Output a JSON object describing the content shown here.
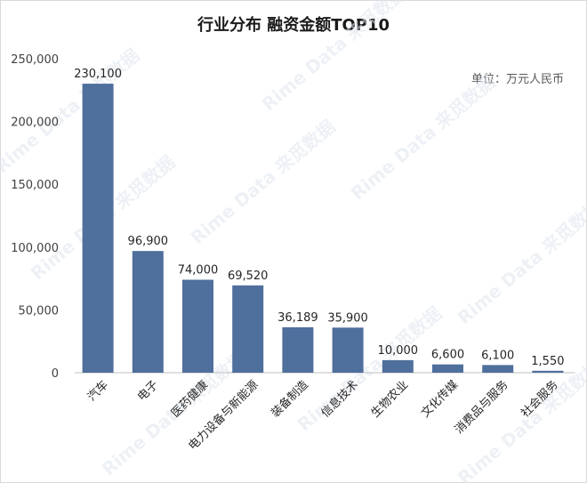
{
  "chart_data": {
    "type": "bar",
    "title": "行业分布 融资金额TOP10",
    "unit_note": "单位：万元人民币",
    "categories": [
      "汽车",
      "电子",
      "医药健康",
      "电力设备与新能源",
      "装备制造",
      "信息技术",
      "生物农业",
      "文化传媒",
      "消费品与服务",
      "社会服务"
    ],
    "values": [
      230100,
      96900,
      74000,
      69520,
      36189,
      35900,
      10000,
      6600,
      6100,
      1550
    ],
    "data_labels": [
      "230,100",
      "96,900",
      "74,000",
      "69,520",
      "36,189",
      "35,900",
      "10,000",
      "6,600",
      "6,100",
      "1,550"
    ],
    "yticks": [
      "0",
      "50,000",
      "100,000",
      "150,000",
      "200,000",
      "250,000"
    ],
    "ylim": [
      0,
      250000
    ],
    "grid": false,
    "bar_color": "#4f6f9c",
    "watermark": "Rime Data 来觅数据"
  }
}
